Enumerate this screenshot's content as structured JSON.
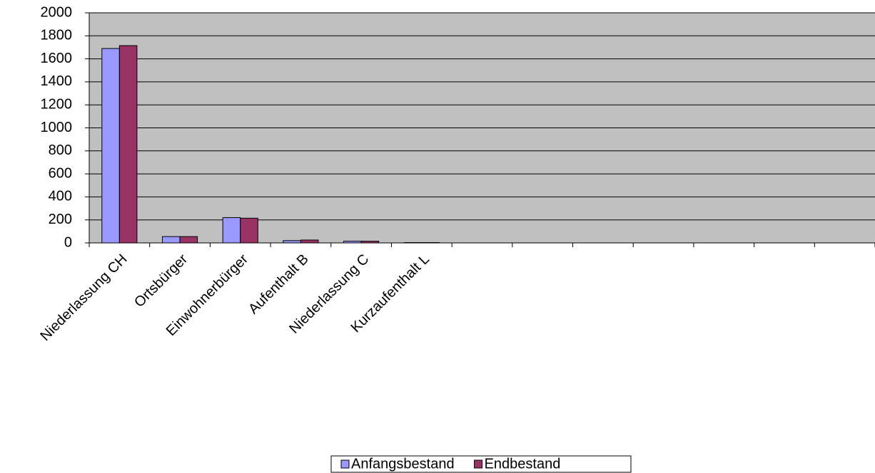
{
  "chart_data": {
    "type": "bar",
    "categories": [
      "Niederlassung CH",
      "Ortsbürger",
      "Einwohnerbürger",
      "Aufenthalt B",
      "Niederlassung C",
      "Kurzaufenthalt L",
      null,
      null,
      null,
      null,
      null,
      null,
      null
    ],
    "series": [
      {
        "name": "Anfangsbestand",
        "color": "#9999ff",
        "values": [
          1690,
          55,
          220,
          20,
          15,
          3,
          null,
          null,
          null,
          null,
          null,
          null,
          null
        ]
      },
      {
        "name": "Endbestand",
        "color": "#993366",
        "values": [
          1715,
          55,
          215,
          25,
          15,
          3,
          null,
          null,
          null,
          null,
          null,
          null,
          null
        ]
      }
    ],
    "ylim": [
      0,
      2000
    ],
    "yticks": [
      0,
      200,
      400,
      600,
      800,
      1000,
      1200,
      1400,
      1600,
      1800,
      2000
    ],
    "grid": true,
    "legend": "bottom",
    "plot_background": "#c0c0c0"
  }
}
